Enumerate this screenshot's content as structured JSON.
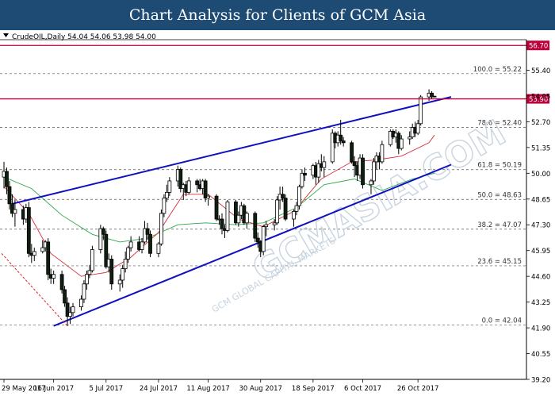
{
  "banner": {
    "title": "Chart Analysis for Clients of GCM Asia"
  },
  "chart_data": {
    "type": "candlestick",
    "symbol_header": "CrudeOIL,Daily  54.04 54.06 53.98 54.00",
    "ohlc_current": {
      "open": 54.04,
      "high": 54.06,
      "low": 53.98,
      "close": 54.0
    },
    "watermark": "GCMASIA.COM",
    "watermark_small": "GCM GLOBAL CAPITAL MARKETS",
    "ylim": [
      39.2,
      57.0
    ],
    "y_ticks": [
      "56.70",
      "55.40",
      "54.05",
      "53.90",
      "52.70",
      "51.35",
      "50.00",
      "48.65",
      "47.30",
      "45.95",
      "44.60",
      "43.25",
      "41.90",
      "40.55",
      "39.20"
    ],
    "x_ticks": [
      "29 May 2017",
      "16 Jun 2017",
      "5 Jul 2017",
      "24 Jul 2017",
      "11 Aug 2017",
      "30 Aug 2017",
      "18 Sep 2017",
      "6 Oct 2017",
      "26 Oct 2017"
    ],
    "x_range": [
      "2017-05-29",
      "2017-11-03"
    ],
    "horizontal_levels": [
      {
        "label": "56.70",
        "value": 56.7,
        "color": "#c0003a"
      },
      {
        "label": "53.90",
        "value": 53.9,
        "color": "#c0003a"
      }
    ],
    "fibonacci": [
      {
        "label": "100.0 = 55.22",
        "value": 55.22
      },
      {
        "label": "78.6 = 52.40",
        "value": 52.4
      },
      {
        "label": "61.8 = 50.19",
        "value": 50.19
      },
      {
        "label": "50.0 = 48.63",
        "value": 48.63
      },
      {
        "label": "38.2 = 47.07",
        "value": 47.07
      },
      {
        "label": "23.6 = 45.15",
        "value": 45.15
      },
      {
        "label": "0.0 = 42.04",
        "value": 42.04
      }
    ],
    "channel_lines": [
      {
        "from": [
          "2017-06-01",
          48.4
        ],
        "to": [
          "2017-11-07",
          54.0
        ],
        "color": "#1010c0"
      },
      {
        "from": [
          "2017-06-16",
          42.0
        ],
        "to": [
          "2017-11-07",
          50.45
        ],
        "color": "#1010c0"
      }
    ],
    "moving_averages": [
      {
        "color": "#2ea84c",
        "points": [
          [
            "2017-05-29",
            49.8
          ],
          [
            "2017-06-08",
            49.2
          ],
          [
            "2017-06-19",
            47.8
          ],
          [
            "2017-06-30",
            46.8
          ],
          [
            "2017-07-10",
            46.4
          ],
          [
            "2017-07-20",
            46.6
          ],
          [
            "2017-07-31",
            47.3
          ],
          [
            "2017-08-10",
            47.4
          ],
          [
            "2017-08-21",
            47.3
          ],
          [
            "2017-08-31",
            47.4
          ],
          [
            "2017-09-12",
            48.2
          ],
          [
            "2017-09-22",
            49.4
          ],
          [
            "2017-10-03",
            49.7
          ],
          [
            "2017-10-13",
            49.1
          ],
          [
            "2017-10-24",
            49.7
          ],
          [
            "2017-11-01",
            50.0
          ]
        ]
      },
      {
        "color": "#d62e3c",
        "points": [
          [
            "2017-05-29",
            49.3
          ],
          [
            "2017-06-07",
            47.9
          ],
          [
            "2017-06-15",
            45.8
          ],
          [
            "2017-06-26",
            44.6
          ],
          [
            "2017-07-05",
            44.8
          ],
          [
            "2017-07-14",
            45.6
          ],
          [
            "2017-07-24",
            46.9
          ],
          [
            "2017-08-02",
            48.9
          ],
          [
            "2017-08-11",
            48.9
          ],
          [
            "2017-08-22",
            47.6
          ],
          [
            "2017-08-31",
            47.2
          ],
          [
            "2017-09-11",
            48.0
          ],
          [
            "2017-09-21",
            49.7
          ],
          [
            "2017-10-02",
            50.6
          ],
          [
            "2017-10-11",
            50.7
          ],
          [
            "2017-10-20",
            50.9
          ],
          [
            "2017-10-30",
            51.6
          ],
          [
            "2017-11-01",
            52.0
          ]
        ]
      }
    ],
    "candles": [
      [
        "2017-05-29",
        49.8,
        50.6,
        49.2,
        50.1
      ],
      [
        "2017-05-30",
        50.1,
        50.3,
        48.9,
        49.3
      ],
      [
        "2017-05-31",
        49.3,
        49.6,
        48.1,
        48.4
      ],
      [
        "2017-06-01",
        48.4,
        48.9,
        47.7,
        47.9
      ],
      [
        "2017-06-02",
        47.9,
        48.6,
        47.2,
        48.1
      ],
      [
        "2017-06-05",
        48.1,
        48.3,
        47.3,
        47.6
      ],
      [
        "2017-06-06",
        47.6,
        48.4,
        47.4,
        48.2
      ],
      [
        "2017-06-07",
        48.2,
        48.5,
        45.6,
        45.8
      ],
      [
        "2017-06-08",
        45.8,
        46.3,
        45.3,
        45.7
      ],
      [
        "2017-06-09",
        45.7,
        46.1,
        45.4,
        45.9
      ],
      [
        "2017-06-12",
        45.9,
        46.5,
        45.8,
        46.1
      ],
      [
        "2017-06-13",
        46.1,
        46.5,
        45.9,
        46.4
      ],
      [
        "2017-06-14",
        46.4,
        46.6,
        44.4,
        44.7
      ],
      [
        "2017-06-15",
        44.7,
        45.0,
        44.2,
        44.5
      ],
      [
        "2017-06-16",
        44.5,
        44.9,
        44.2,
        44.7
      ],
      [
        "2017-06-19",
        44.7,
        44.9,
        43.7,
        43.9
      ],
      [
        "2017-06-20",
        43.9,
        44.1,
        43.0,
        43.2
      ],
      [
        "2017-06-21",
        43.2,
        43.5,
        42.0,
        42.5
      ],
      [
        "2017-06-22",
        42.5,
        43.0,
        42.1,
        42.7
      ],
      [
        "2017-06-23",
        42.7,
        43.2,
        42.5,
        43.0
      ],
      [
        "2017-06-26",
        43.0,
        43.6,
        42.8,
        43.4
      ],
      [
        "2017-06-27",
        43.4,
        44.4,
        43.2,
        44.2
      ],
      [
        "2017-06-28",
        44.2,
        44.9,
        43.9,
        44.7
      ],
      [
        "2017-06-29",
        44.7,
        45.2,
        44.5,
        44.9
      ],
      [
        "2017-06-30",
        44.9,
        46.2,
        44.8,
        46.0
      ],
      [
        "2017-07-03",
        46.0,
        47.3,
        45.8,
        47.1
      ],
      [
        "2017-07-04",
        47.1,
        47.2,
        46.5,
        46.8
      ],
      [
        "2017-07-05",
        46.8,
        47.0,
        45.0,
        45.1
      ],
      [
        "2017-07-06",
        45.1,
        45.8,
        44.8,
        45.5
      ],
      [
        "2017-07-07",
        45.5,
        45.7,
        43.9,
        44.2
      ],
      [
        "2017-07-10",
        44.2,
        44.7,
        43.8,
        44.4
      ],
      [
        "2017-07-11",
        44.4,
        45.2,
        44.0,
        45.0
      ],
      [
        "2017-07-12",
        45.0,
        45.9,
        44.8,
        45.5
      ],
      [
        "2017-07-13",
        45.5,
        46.2,
        45.3,
        46.1
      ],
      [
        "2017-07-14",
        46.1,
        46.7,
        45.9,
        46.4
      ],
      [
        "2017-07-17",
        46.4,
        46.7,
        45.9,
        46.0
      ],
      [
        "2017-07-18",
        46.0,
        46.6,
        45.8,
        46.4
      ],
      [
        "2017-07-19",
        46.4,
        47.5,
        46.3,
        47.1
      ],
      [
        "2017-07-20",
        47.1,
        47.4,
        46.5,
        46.8
      ],
      [
        "2017-07-21",
        46.8,
        47.0,
        45.6,
        45.8
      ],
      [
        "2017-07-24",
        45.8,
        46.4,
        45.6,
        46.3
      ],
      [
        "2017-07-25",
        46.3,
        48.1,
        46.2,
        47.9
      ],
      [
        "2017-07-26",
        47.9,
        48.9,
        47.7,
        48.7
      ],
      [
        "2017-07-27",
        48.7,
        49.4,
        48.5,
        49.0
      ],
      [
        "2017-07-28",
        49.0,
        49.8,
        48.8,
        49.6
      ],
      [
        "2017-07-31",
        49.6,
        50.4,
        49.3,
        50.2
      ],
      [
        "2017-08-01",
        50.2,
        50.3,
        49.0,
        49.2
      ],
      [
        "2017-08-02",
        49.2,
        49.5,
        48.6,
        49.4
      ],
      [
        "2017-08-03",
        49.4,
        49.6,
        48.8,
        49.0
      ],
      [
        "2017-08-04",
        49.0,
        49.8,
        48.9,
        49.6
      ],
      [
        "2017-08-07",
        49.6,
        49.7,
        49.0,
        49.4
      ],
      [
        "2017-08-08",
        49.4,
        49.7,
        49.1,
        49.2
      ],
      [
        "2017-08-09",
        49.2,
        49.7,
        48.9,
        49.6
      ],
      [
        "2017-08-10",
        49.6,
        49.7,
        48.5,
        48.7
      ],
      [
        "2017-08-11",
        48.7,
        48.9,
        48.3,
        48.8
      ],
      [
        "2017-08-14",
        48.8,
        48.9,
        47.5,
        47.6
      ],
      [
        "2017-08-15",
        47.6,
        47.8,
        47.3,
        47.6
      ],
      [
        "2017-08-16",
        47.6,
        47.9,
        46.8,
        47.1
      ],
      [
        "2017-08-17",
        47.1,
        47.3,
        46.6,
        47.0
      ],
      [
        "2017-08-18",
        47.0,
        48.6,
        46.9,
        48.5
      ],
      [
        "2017-08-21",
        48.5,
        48.6,
        47.3,
        47.4
      ],
      [
        "2017-08-22",
        47.4,
        48.0,
        47.2,
        47.8
      ],
      [
        "2017-08-23",
        47.8,
        48.5,
        47.6,
        48.3
      ],
      [
        "2017-08-24",
        48.3,
        48.4,
        47.3,
        47.4
      ],
      [
        "2017-08-25",
        47.4,
        48.0,
        47.1,
        47.9
      ],
      [
        "2017-08-28",
        47.9,
        48.0,
        46.4,
        46.6
      ],
      [
        "2017-08-29",
        46.6,
        46.9,
        46.1,
        46.4
      ],
      [
        "2017-08-30",
        46.4,
        46.5,
        45.6,
        45.9
      ],
      [
        "2017-08-31",
        45.9,
        47.3,
        45.7,
        47.2
      ],
      [
        "2017-09-01",
        47.2,
        47.5,
        46.7,
        47.3
      ],
      [
        "2017-09-04",
        47.3,
        47.6,
        47.0,
        47.4
      ],
      [
        "2017-09-05",
        47.4,
        48.8,
        47.3,
        48.6
      ],
      [
        "2017-09-06",
        48.6,
        49.3,
        48.1,
        48.9
      ],
      [
        "2017-09-07",
        48.9,
        49.3,
        48.5,
        48.7
      ],
      [
        "2017-09-08",
        48.7,
        48.9,
        47.5,
        47.6
      ],
      [
        "2017-09-11",
        47.6,
        48.1,
        47.2,
        48.0
      ],
      [
        "2017-09-12",
        48.0,
        48.5,
        47.8,
        48.3
      ],
      [
        "2017-09-13",
        48.3,
        49.4,
        48.1,
        49.3
      ],
      [
        "2017-09-14",
        49.3,
        50.2,
        49.2,
        50.0
      ],
      [
        "2017-09-15",
        50.0,
        50.3,
        49.6,
        49.9
      ],
      [
        "2017-09-18",
        49.9,
        50.5,
        49.7,
        50.4
      ],
      [
        "2017-09-19",
        50.4,
        50.6,
        49.4,
        49.8
      ],
      [
        "2017-09-20",
        49.8,
        50.7,
        49.5,
        50.5
      ],
      [
        "2017-09-21",
        50.5,
        51.0,
        50.1,
        50.3
      ],
      [
        "2017-09-22",
        50.3,
        50.9,
        49.8,
        50.6
      ],
      [
        "2017-09-25",
        50.6,
        52.3,
        50.5,
        52.1
      ],
      [
        "2017-09-26",
        52.1,
        52.2,
        51.3,
        51.6
      ],
      [
        "2017-09-27",
        51.6,
        52.2,
        51.4,
        52.0
      ],
      [
        "2017-09-28",
        52.0,
        52.8,
        51.5,
        51.7
      ],
      [
        "2017-09-29",
        51.7,
        51.9,
        51.4,
        51.6
      ],
      [
        "2017-10-02",
        51.6,
        51.7,
        50.5,
        50.6
      ],
      [
        "2017-10-03",
        50.6,
        50.9,
        49.8,
        50.4
      ],
      [
        "2017-10-04",
        50.4,
        50.6,
        49.6,
        49.9
      ],
      [
        "2017-10-05",
        49.9,
        51.0,
        49.7,
        50.8
      ],
      [
        "2017-10-06",
        50.8,
        51.0,
        49.2,
        49.4
      ],
      [
        "2017-10-09",
        49.4,
        49.7,
        48.9,
        49.6
      ],
      [
        "2017-10-10",
        49.6,
        50.8,
        49.4,
        50.6
      ],
      [
        "2017-10-11",
        50.6,
        51.1,
        50.2,
        50.9
      ],
      [
        "2017-10-12",
        50.9,
        51.1,
        50.2,
        50.6
      ],
      [
        "2017-10-13",
        50.6,
        51.7,
        50.5,
        51.5
      ],
      [
        "2017-10-16",
        51.5,
        52.3,
        51.4,
        52.2
      ],
      [
        "2017-10-17",
        52.2,
        52.3,
        51.8,
        51.9
      ],
      [
        "2017-10-18",
        51.9,
        52.3,
        51.6,
        52.1
      ],
      [
        "2017-10-19",
        52.1,
        52.2,
        51.0,
        51.3
      ],
      [
        "2017-10-20",
        51.3,
        52.0,
        51.2,
        51.8
      ],
      [
        "2017-10-23",
        51.8,
        52.2,
        51.5,
        51.9
      ],
      [
        "2017-10-24",
        51.9,
        52.6,
        51.8,
        52.4
      ],
      [
        "2017-10-25",
        52.4,
        52.7,
        51.9,
        52.1
      ],
      [
        "2017-10-26",
        52.1,
        52.8,
        52.0,
        52.6
      ],
      [
        "2017-10-27",
        52.6,
        54.1,
        52.5,
        54.0
      ],
      [
        "2017-10-30",
        54.0,
        54.4,
        53.8,
        54.2
      ],
      [
        "2017-10-31",
        54.2,
        54.3,
        53.9,
        54.0
      ],
      [
        "2017-11-01",
        54.04,
        54.06,
        53.98,
        54.0
      ]
    ]
  }
}
